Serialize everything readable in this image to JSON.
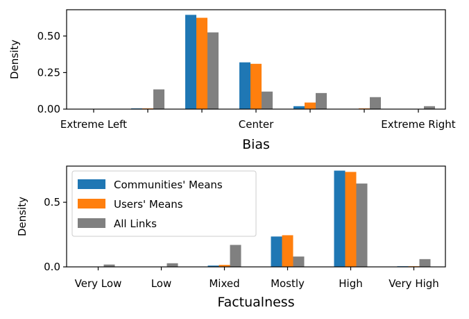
{
  "colors": {
    "communities": "#1f77b4",
    "users": "#ff7f0e",
    "all_links": "#808080"
  },
  "chart_data": [
    {
      "type": "bar",
      "title": "",
      "xlabel": "Bias",
      "ylabel": "Density",
      "ylim": [
        0,
        0.68
      ],
      "yticks": [
        0.0,
        0.25,
        0.5
      ],
      "ytick_labels": [
        "0.00",
        "0.25",
        "0.50"
      ],
      "xlim": [
        -0.5,
        6.5
      ],
      "bar_positions": [
        0,
        1,
        2,
        3,
        4,
        5,
        6
      ],
      "xtick_positions": [
        0,
        1,
        2,
        3,
        4,
        5,
        6
      ],
      "xtick_labels": [
        "Extreme Left",
        "",
        "",
        "Center",
        "",
        "",
        "Extreme Right"
      ],
      "series": [
        {
          "name": "Communities' Means",
          "color_key": "communities",
          "values": [
            0.0,
            0.005,
            0.645,
            0.32,
            0.02,
            0.0,
            0.0
          ]
        },
        {
          "name": "Users' Means",
          "color_key": "users",
          "values": [
            0.0,
            0.005,
            0.625,
            0.31,
            0.045,
            0.005,
            0.0
          ]
        },
        {
          "name": "All Links",
          "color_key": "all_links",
          "values": [
            0.0,
            0.135,
            0.525,
            0.12,
            0.11,
            0.082,
            0.02
          ]
        }
      ],
      "legend": false
    },
    {
      "type": "bar",
      "title": "",
      "xlabel": "Factualness",
      "ylabel": "Density",
      "ylim": [
        0,
        0.78
      ],
      "yticks": [
        0.0,
        0.5
      ],
      "ytick_labels": [
        "0.0",
        "0.5"
      ],
      "xlim": [
        -0.5,
        5.5
      ],
      "bar_positions": [
        0,
        1,
        2,
        3,
        4,
        5
      ],
      "xtick_positions": [
        0,
        1,
        2,
        3,
        4,
        5
      ],
      "xtick_labels": [
        "Very Low",
        "Low",
        "Mixed",
        "Mostly",
        "High",
        "Very High"
      ],
      "series": [
        {
          "name": "Communities' Means",
          "color_key": "communities",
          "values": [
            0.0,
            0.0,
            0.01,
            0.235,
            0.745,
            0.005
          ]
        },
        {
          "name": "Users' Means",
          "color_key": "users",
          "values": [
            0.0,
            0.0,
            0.015,
            0.245,
            0.735,
            0.005
          ]
        },
        {
          "name": "All Links",
          "color_key": "all_links",
          "values": [
            0.018,
            0.028,
            0.17,
            0.08,
            0.645,
            0.06
          ]
        }
      ],
      "legend": true,
      "legend_position": "upper-left"
    }
  ]
}
